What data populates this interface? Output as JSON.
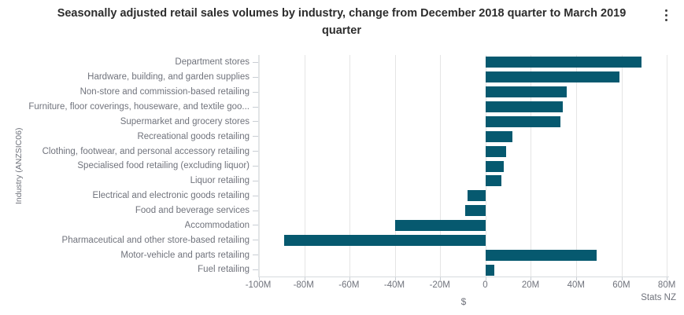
{
  "header": {
    "title": "Seasonally adjusted retail sales volumes by industry, change from December 2018 quarter to March 2019 quarter",
    "menu_icon": "kebab-menu"
  },
  "chart_data": {
    "type": "bar",
    "orientation": "horizontal",
    "title": "Seasonally adjusted retail sales volumes by industry, change from December 2018 quarter to March 2019 quarter",
    "xlabel": "$",
    "ylabel": "Industry (ANZSIC06)",
    "unit": "millions of dollars",
    "grid": true,
    "legend": false,
    "xlim": [
      -100,
      81
    ],
    "x_ticks": [
      {
        "label": "-100M",
        "value": -100
      },
      {
        "label": "-80M",
        "value": -80
      },
      {
        "label": "-60M",
        "value": -60
      },
      {
        "label": "-40M",
        "value": -40
      },
      {
        "label": "-20M",
        "value": -20
      },
      {
        "label": "0",
        "value": 0
      },
      {
        "label": "20M",
        "value": 20
      },
      {
        "label": "40M",
        "value": 40
      },
      {
        "label": "60M",
        "value": 60
      },
      {
        "label": "80M",
        "value": 80
      }
    ],
    "categories": [
      "Department stores",
      "Hardware, building, and garden supplies",
      "Non-store and commission-based retailing",
      "Furniture, floor coverings, houseware, and textile goo...",
      "Supermarket and grocery stores",
      "Recreational goods retailing",
      "Clothing, footwear, and personal accessory retailing",
      "Specialised food retailing (excluding liquor)",
      "Liquor retailing",
      "Electrical and electronic goods retailing",
      "Food and beverage services",
      "Accommodation",
      "Pharmaceutical and other store-based retailing",
      "Motor-vehicle and parts retailing",
      "Fuel retailing"
    ],
    "values": [
      69,
      59,
      36,
      34,
      33,
      12,
      9,
      8,
      7,
      -8,
      -9,
      -40,
      -89,
      49,
      4
    ],
    "colors": {
      "bar": "#06596f",
      "grid": "#e5e5e5",
      "axis": "#d6dade",
      "text": "#70737c",
      "title": "#2d2d2d"
    },
    "source": "Stats NZ"
  }
}
